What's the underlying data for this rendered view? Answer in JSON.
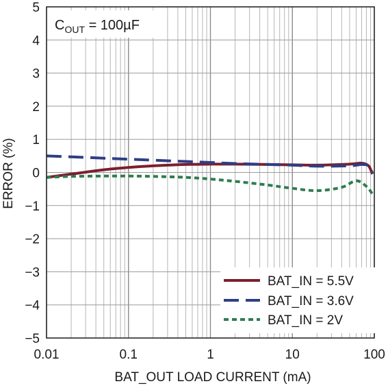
{
  "chart_data": {
    "type": "line",
    "title": "",
    "xlabel": "BAT_OUT LOAD CURRENT (mA)",
    "ylabel": "ERROR (%)",
    "x_scale": "log",
    "xlim": [
      0.01,
      100
    ],
    "ylim": [
      -5,
      5
    ],
    "grid": true,
    "x_ticks": [
      "0.01",
      "0.1",
      "1",
      "10",
      "100"
    ],
    "y_ticks": [
      "5",
      "4",
      "3",
      "2",
      "1",
      "0",
      "−1",
      "−2",
      "−3",
      "−4",
      "−5"
    ],
    "annotation": {
      "main": "C",
      "sub": "OUT",
      "rest": " = 100µF"
    },
    "legend_position": "bottom-right",
    "series": [
      {
        "name": "BAT_IN = 5.5V",
        "color": "#7b1f2e",
        "dash": "solid",
        "x": [
          0.01,
          0.02,
          0.05,
          0.1,
          0.2,
          0.5,
          1,
          2,
          5,
          10,
          20,
          50,
          70,
          85,
          95
        ],
        "y": [
          -0.15,
          -0.05,
          0.08,
          0.15,
          0.2,
          0.24,
          0.25,
          0.25,
          0.24,
          0.23,
          0.22,
          0.25,
          0.28,
          0.2,
          -0.05
        ]
      },
      {
        "name": "BAT_IN = 3.6V",
        "color": "#2e3e85",
        "dash": "dashed",
        "x": [
          0.01,
          0.02,
          0.05,
          0.1,
          0.2,
          0.5,
          1,
          2,
          5,
          10,
          20,
          50,
          70,
          85,
          95
        ],
        "y": [
          0.5,
          0.47,
          0.43,
          0.4,
          0.37,
          0.33,
          0.3,
          0.27,
          0.24,
          0.22,
          0.19,
          0.2,
          0.24,
          0.2,
          -0.02
        ]
      },
      {
        "name": "BAT_IN = 2V",
        "color": "#2e7d4f",
        "dash": "dotted",
        "x": [
          0.01,
          0.02,
          0.05,
          0.1,
          0.2,
          0.5,
          1,
          2,
          5,
          10,
          20,
          40,
          60,
          80,
          95
        ],
        "y": [
          -0.15,
          -0.12,
          -0.11,
          -0.11,
          -0.12,
          -0.15,
          -0.2,
          -0.27,
          -0.38,
          -0.48,
          -0.55,
          -0.45,
          -0.25,
          -0.42,
          -0.65
        ]
      }
    ]
  }
}
